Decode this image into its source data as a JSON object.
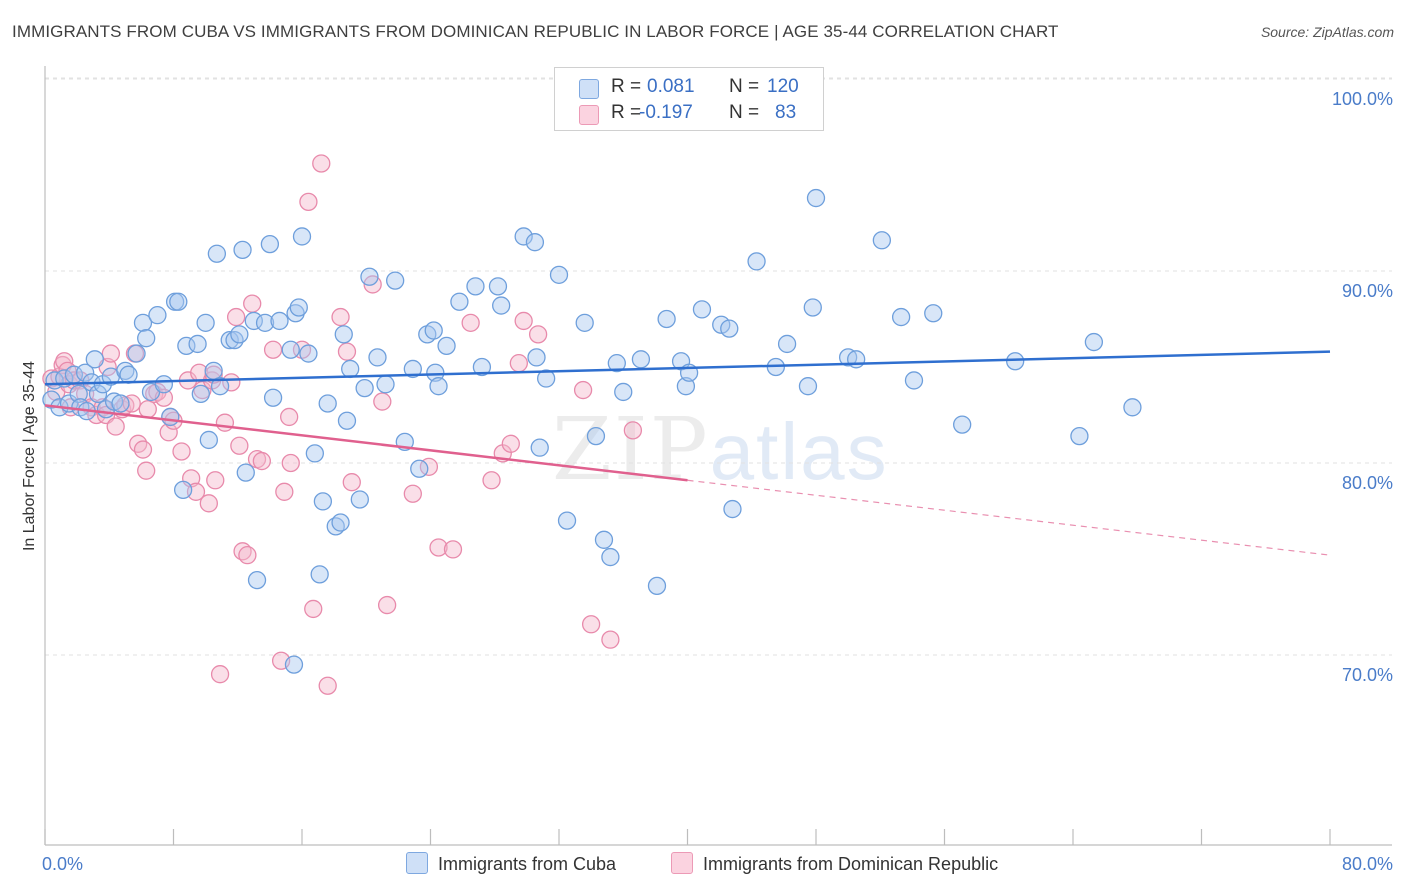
{
  "title": "IMMIGRANTS FROM CUBA VS IMMIGRANTS FROM DOMINICAN REPUBLIC IN LABOR FORCE | AGE 35-44 CORRELATION CHART",
  "source": "Source: ZipAtlas.com",
  "watermark": {
    "zip": "ZIP",
    "atlas": "atlas"
  },
  "legend": {
    "rows": [
      {
        "r_label": "R =",
        "r_value": "0.081",
        "n_label": "N =",
        "n_value": "120",
        "color": "#a8c8f0"
      },
      {
        "r_label": "R =",
        "r_value": "-0.197",
        "n_label": "N =",
        "n_value": "83",
        "color": "#f5b8cc"
      }
    ]
  },
  "bottom_legend": [
    "Immigrants from Cuba",
    "Immigrants from Dominican Republic"
  ],
  "colors": {
    "cuba_fill": "#a8c8f0",
    "cuba_stroke": "#6e9fdc",
    "cuba_line": "#2f6fcf",
    "dr_fill": "#f5b8cc",
    "dr_stroke": "#e88aab",
    "dr_line": "#e0608e",
    "axis_label": "#4a7cc9"
  },
  "chart_data": {
    "type": "scatter",
    "title": "IMMIGRANTS FROM CUBA VS IMMIGRANTS FROM DOMINICAN REPUBLIC IN LABOR FORCE | AGE 35-44 CORRELATION CHART",
    "xlabel": "",
    "ylabel": "In Labor Force | Age 35-44",
    "xlim": [
      0,
      80
    ],
    "ylim": [
      61.5,
      102
    ],
    "x_tick_labels": [
      "0.0%",
      "80.0%"
    ],
    "y_ticks": [
      70,
      80,
      90,
      100
    ],
    "y_tick_labels": [
      "70.0%",
      "80.0%",
      "90.0%",
      "100.0%"
    ],
    "grid": true,
    "legend_position": "top-center",
    "series": [
      {
        "name": "Immigrants from Cuba",
        "r": 0.081,
        "n": 120,
        "trend": {
          "x": [
            0,
            80
          ],
          "y": [
            84.1,
            85.8
          ],
          "dashed_from": null
        },
        "points": [
          [
            0.4,
            83.3
          ],
          [
            0.6,
            84.3
          ],
          [
            0.9,
            82.9
          ],
          [
            1.2,
            84.4
          ],
          [
            1.5,
            83.1
          ],
          [
            1.8,
            84.6
          ],
          [
            2.1,
            83.6
          ],
          [
            2.2,
            82.9
          ],
          [
            2.5,
            84.7
          ],
          [
            2.6,
            82.7
          ],
          [
            2.9,
            84.2
          ],
          [
            3.1,
            85.4
          ],
          [
            3.3,
            83.6
          ],
          [
            3.6,
            84.1
          ],
          [
            3.8,
            82.8
          ],
          [
            4.1,
            84.5
          ],
          [
            4.3,
            83.2
          ],
          [
            4.7,
            83.1
          ],
          [
            5.0,
            84.8
          ],
          [
            5.2,
            84.6
          ],
          [
            5.7,
            85.7
          ],
          [
            6.1,
            87.3
          ],
          [
            6.3,
            86.5
          ],
          [
            6.6,
            83.7
          ],
          [
            7.0,
            87.7
          ],
          [
            7.4,
            84.1
          ],
          [
            7.8,
            82.4
          ],
          [
            8.1,
            88.4
          ],
          [
            8.3,
            88.4
          ],
          [
            8.6,
            78.6
          ],
          [
            8.8,
            86.1
          ],
          [
            9.5,
            86.2
          ],
          [
            9.7,
            83.6
          ],
          [
            10.0,
            87.3
          ],
          [
            10.2,
            81.2
          ],
          [
            10.5,
            84.8
          ],
          [
            10.7,
            90.9
          ],
          [
            10.9,
            84.0
          ],
          [
            11.5,
            86.4
          ],
          [
            11.8,
            86.4
          ],
          [
            12.1,
            86.7
          ],
          [
            12.3,
            91.1
          ],
          [
            12.5,
            79.5
          ],
          [
            13.0,
            87.4
          ],
          [
            13.2,
            73.9
          ],
          [
            13.7,
            87.3
          ],
          [
            14.0,
            91.4
          ],
          [
            14.2,
            83.4
          ],
          [
            14.6,
            87.4
          ],
          [
            15.3,
            85.9
          ],
          [
            15.5,
            69.5
          ],
          [
            15.6,
            87.8
          ],
          [
            15.8,
            88.1
          ],
          [
            16.0,
            91.8
          ],
          [
            16.4,
            85.7
          ],
          [
            16.8,
            80.5
          ],
          [
            17.1,
            74.2
          ],
          [
            17.3,
            78.0
          ],
          [
            17.6,
            83.1
          ],
          [
            18.1,
            76.7
          ],
          [
            18.4,
            76.9
          ],
          [
            18.6,
            86.7
          ],
          [
            18.8,
            82.2
          ],
          [
            19.0,
            84.9
          ],
          [
            19.6,
            78.1
          ],
          [
            19.9,
            83.9
          ],
          [
            20.2,
            89.7
          ],
          [
            20.7,
            85.5
          ],
          [
            21.2,
            84.1
          ],
          [
            21.8,
            89.5
          ],
          [
            22.4,
            81.1
          ],
          [
            22.9,
            84.9
          ],
          [
            23.3,
            79.7
          ],
          [
            23.8,
            86.7
          ],
          [
            24.2,
            86.9
          ],
          [
            24.3,
            84.7
          ],
          [
            24.5,
            84.0
          ],
          [
            25.0,
            86.1
          ],
          [
            25.8,
            88.4
          ],
          [
            26.8,
            89.2
          ],
          [
            27.2,
            85.0
          ],
          [
            28.2,
            89.2
          ],
          [
            28.4,
            88.2
          ],
          [
            29.8,
            91.8
          ],
          [
            30.5,
            91.5
          ],
          [
            30.6,
            85.5
          ],
          [
            30.8,
            80.8
          ],
          [
            31.2,
            84.4
          ],
          [
            32.0,
            89.8
          ],
          [
            32.5,
            77.0
          ],
          [
            33.6,
            87.3
          ],
          [
            34.3,
            81.4
          ],
          [
            34.8,
            76.0
          ],
          [
            35.2,
            75.1
          ],
          [
            35.6,
            85.2
          ],
          [
            36.0,
            83.7
          ],
          [
            37.1,
            85.4
          ],
          [
            38.1,
            73.6
          ],
          [
            38.7,
            87.5
          ],
          [
            39.6,
            85.3
          ],
          [
            39.9,
            84.0
          ],
          [
            40.1,
            84.7
          ],
          [
            40.9,
            88.0
          ],
          [
            42.1,
            87.2
          ],
          [
            42.6,
            87.0
          ],
          [
            42.8,
            77.6
          ],
          [
            44.3,
            90.5
          ],
          [
            45.5,
            85.0
          ],
          [
            46.2,
            86.2
          ],
          [
            47.5,
            84.0
          ],
          [
            47.8,
            88.1
          ],
          [
            48.0,
            93.8
          ],
          [
            50.0,
            85.5
          ],
          [
            50.5,
            85.4
          ],
          [
            52.1,
            91.6
          ],
          [
            53.3,
            87.6
          ],
          [
            54.1,
            84.3
          ],
          [
            55.3,
            87.8
          ],
          [
            57.1,
            82.0
          ],
          [
            60.4,
            85.3
          ],
          [
            64.4,
            81.4
          ],
          [
            65.3,
            86.3
          ],
          [
            67.7,
            82.9
          ]
        ]
      },
      {
        "name": "Immigrants from Dominican Republic",
        "r": -0.197,
        "n": 83,
        "trend": {
          "x": [
            0,
            80
          ],
          "y": [
            83.0,
            75.2
          ],
          "dashed_from": 40
        },
        "points": [
          [
            0.4,
            84.4
          ],
          [
            0.7,
            83.7
          ],
          [
            0.9,
            84.5
          ],
          [
            1.1,
            85.1
          ],
          [
            1.2,
            85.3
          ],
          [
            1.4,
            84.8
          ],
          [
            1.5,
            84.1
          ],
          [
            1.6,
            82.9
          ],
          [
            1.8,
            84.3
          ],
          [
            2.2,
            84.3
          ],
          [
            2.5,
            83.6
          ],
          [
            2.9,
            82.9
          ],
          [
            3.2,
            82.5
          ],
          [
            3.6,
            82.9
          ],
          [
            3.8,
            82.5
          ],
          [
            3.9,
            85.0
          ],
          [
            4.1,
            85.7
          ],
          [
            4.4,
            81.9
          ],
          [
            4.8,
            82.8
          ],
          [
            5.0,
            83.0
          ],
          [
            5.4,
            83.1
          ],
          [
            5.6,
            85.7
          ],
          [
            5.8,
            81.0
          ],
          [
            6.1,
            80.7
          ],
          [
            6.3,
            79.6
          ],
          [
            6.4,
            82.8
          ],
          [
            6.8,
            83.6
          ],
          [
            7.0,
            83.7
          ],
          [
            7.4,
            83.4
          ],
          [
            7.7,
            81.6
          ],
          [
            7.8,
            82.4
          ],
          [
            8.0,
            82.2
          ],
          [
            8.5,
            80.6
          ],
          [
            8.9,
            84.3
          ],
          [
            9.1,
            79.2
          ],
          [
            9.4,
            78.5
          ],
          [
            9.6,
            84.7
          ],
          [
            9.8,
            83.8
          ],
          [
            10.2,
            77.9
          ],
          [
            10.4,
            84.3
          ],
          [
            10.5,
            84.6
          ],
          [
            10.6,
            79.1
          ],
          [
            10.9,
            69.0
          ],
          [
            11.2,
            82.1
          ],
          [
            11.6,
            84.2
          ],
          [
            11.9,
            87.6
          ],
          [
            12.1,
            80.9
          ],
          [
            12.3,
            75.4
          ],
          [
            12.6,
            75.2
          ],
          [
            12.9,
            88.3
          ],
          [
            13.2,
            80.2
          ],
          [
            13.5,
            80.1
          ],
          [
            14.2,
            85.9
          ],
          [
            14.7,
            69.7
          ],
          [
            14.9,
            78.5
          ],
          [
            15.2,
            82.4
          ],
          [
            15.3,
            80.0
          ],
          [
            16.0,
            85.9
          ],
          [
            16.4,
            93.6
          ],
          [
            16.7,
            72.4
          ],
          [
            17.2,
            95.6
          ],
          [
            17.6,
            68.4
          ],
          [
            18.4,
            87.6
          ],
          [
            18.8,
            85.8
          ],
          [
            19.1,
            79.0
          ],
          [
            20.4,
            89.3
          ],
          [
            21.0,
            83.2
          ],
          [
            21.3,
            72.6
          ],
          [
            22.9,
            78.4
          ],
          [
            23.9,
            79.8
          ],
          [
            24.5,
            75.6
          ],
          [
            25.4,
            75.5
          ],
          [
            26.5,
            87.3
          ],
          [
            27.8,
            79.1
          ],
          [
            28.5,
            80.5
          ],
          [
            29.0,
            81.0
          ],
          [
            29.5,
            85.2
          ],
          [
            29.8,
            87.4
          ],
          [
            30.7,
            86.7
          ],
          [
            33.5,
            83.8
          ],
          [
            34.0,
            71.6
          ],
          [
            35.2,
            70.8
          ],
          [
            36.6,
            81.7
          ]
        ]
      }
    ]
  }
}
